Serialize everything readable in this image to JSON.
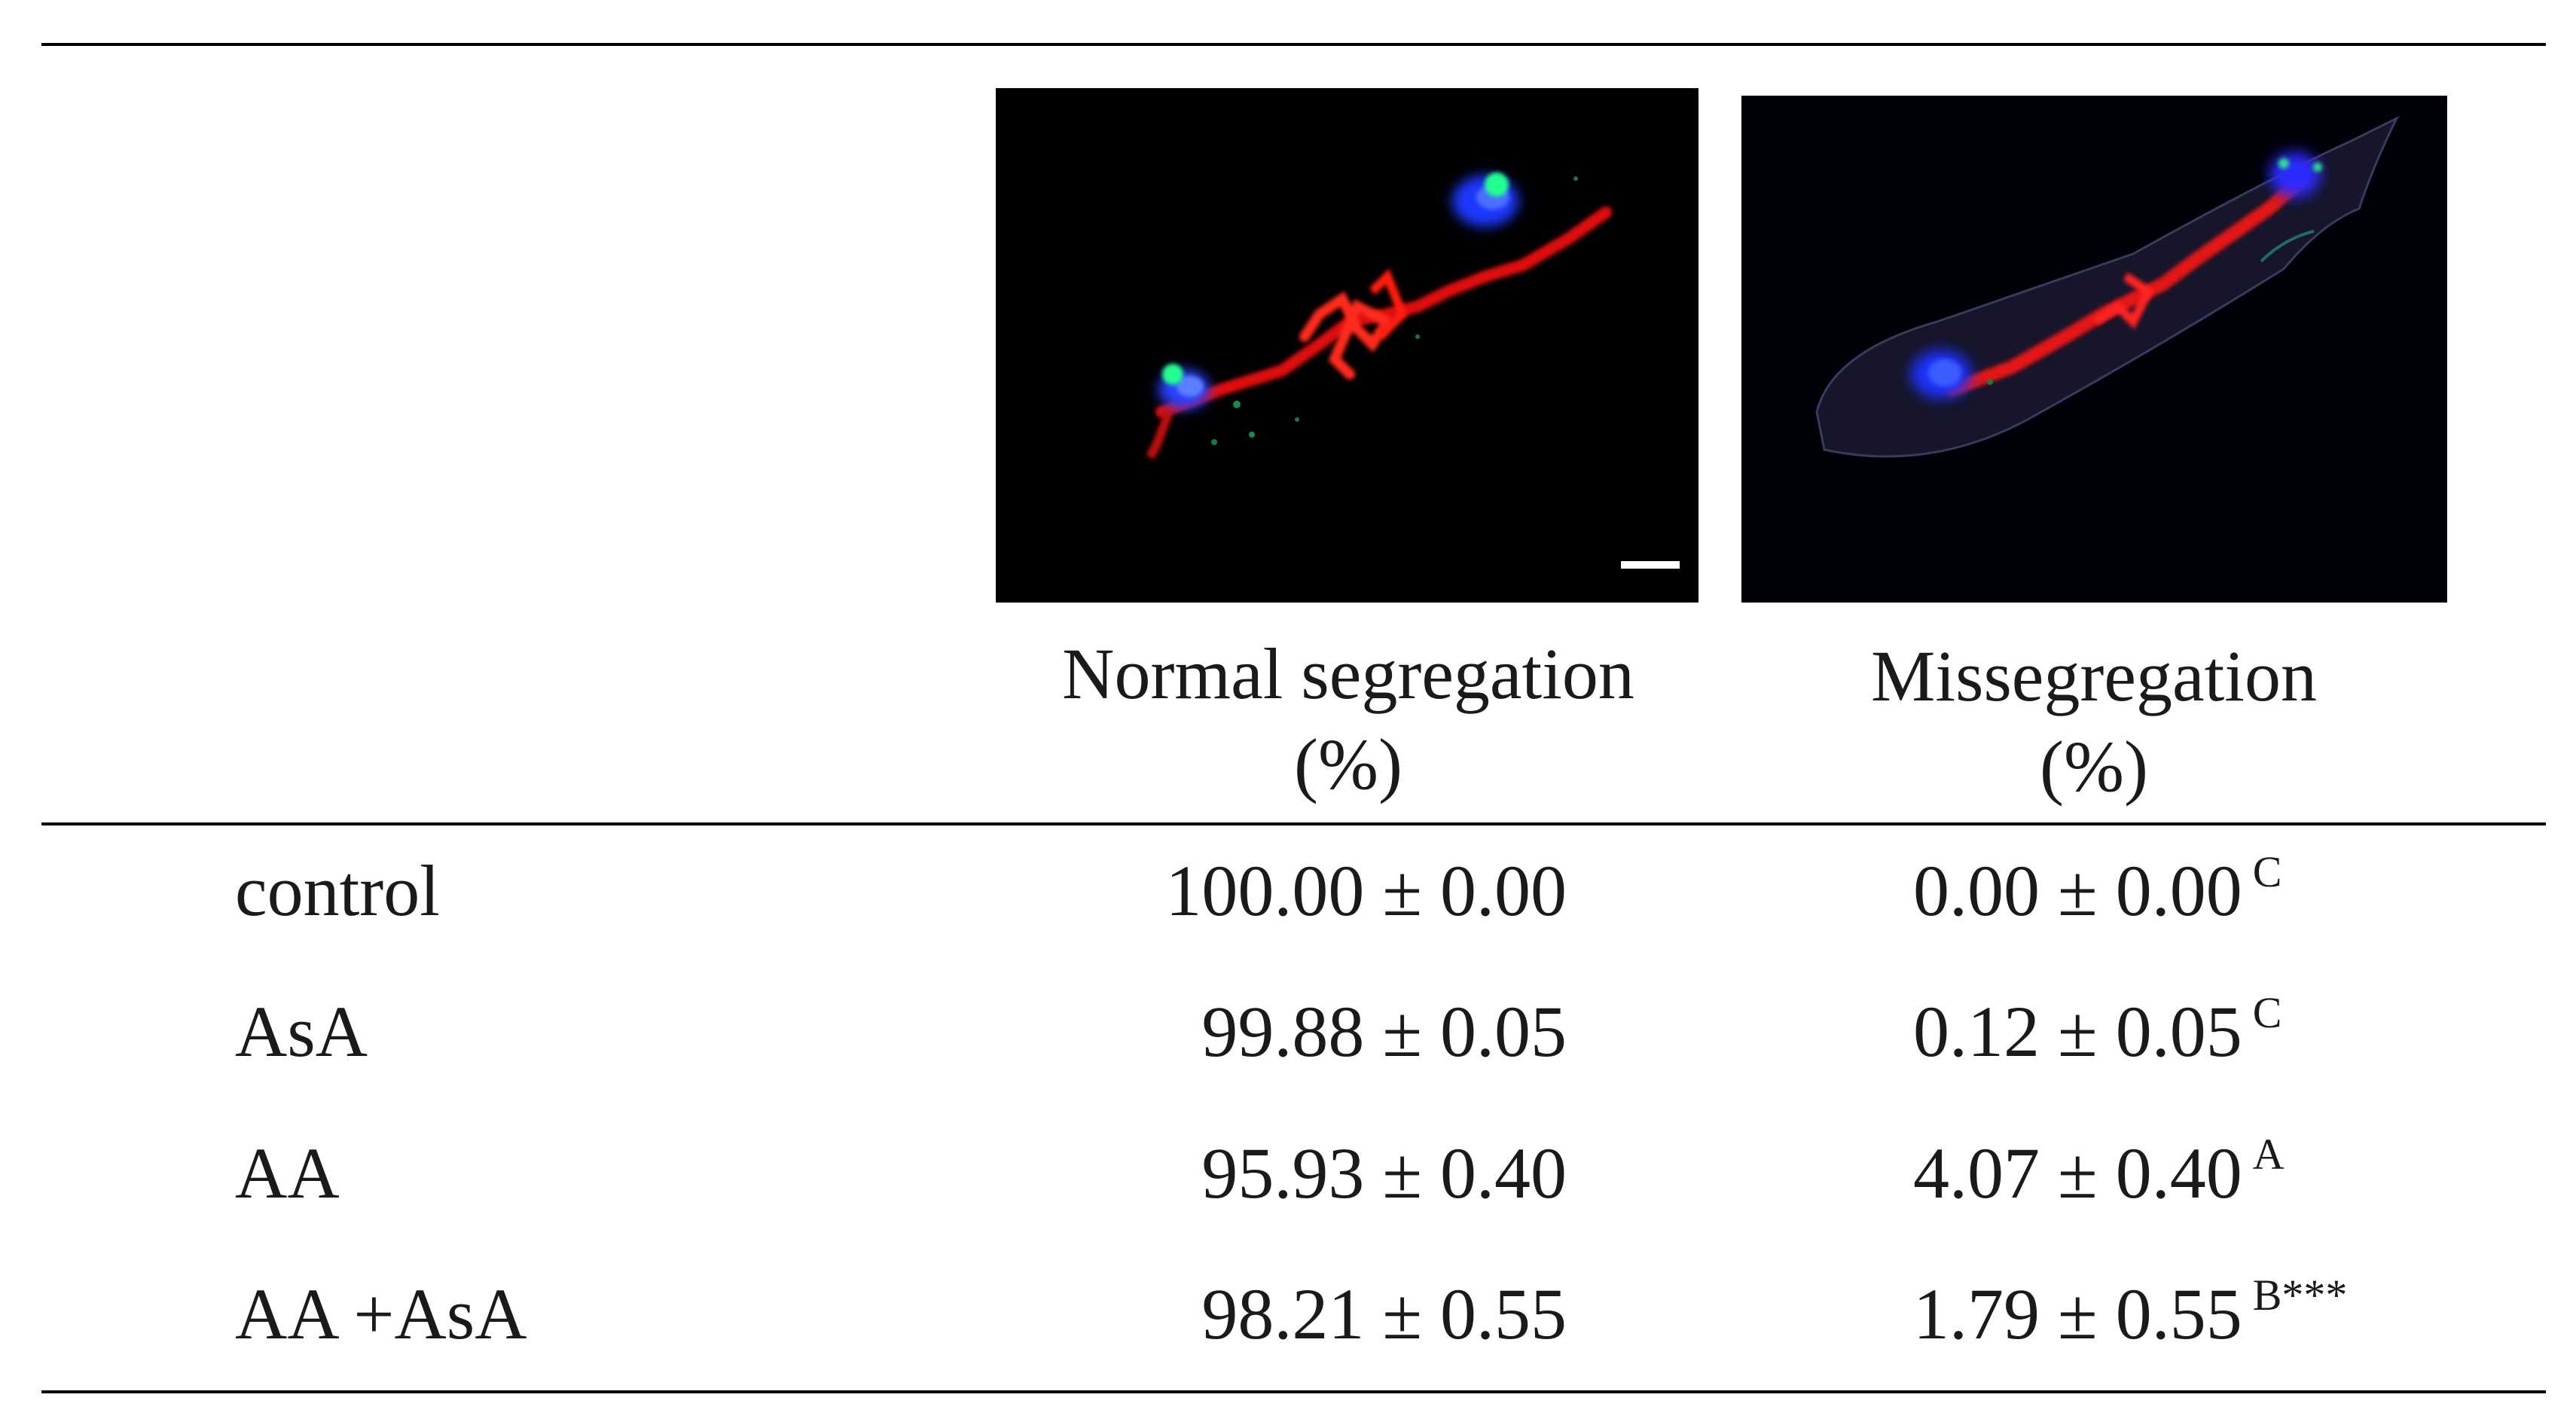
{
  "images": {
    "normal": {
      "name": "Normal segregation micrograph",
      "has_scale_bar": true
    },
    "missegregation": {
      "name": "Missegregation micrograph"
    }
  },
  "columns": {
    "normal": {
      "line1": "Normal segregation",
      "line2": "(%)"
    },
    "missegregation": {
      "line1": "Missegregation",
      "line2": "(%)"
    }
  },
  "rows": [
    {
      "label": "control",
      "normal": "100.00 ± 0.00",
      "mis": "0.00 ± 0.00",
      "mis_sup": "C"
    },
    {
      "label": "AsA",
      "normal": "99.88 ± 0.05",
      "mis": "0.12 ± 0.05",
      "mis_sup": "C"
    },
    {
      "label": "AA",
      "normal": "95.93 ± 0.40",
      "mis": "4.07 ± 0.40",
      "mis_sup": "A"
    },
    {
      "label": "AA +AsA",
      "normal": "98.21 ± 0.55",
      "mis": "1.79 ± 0.55",
      "mis_sup": "B***"
    }
  ]
}
